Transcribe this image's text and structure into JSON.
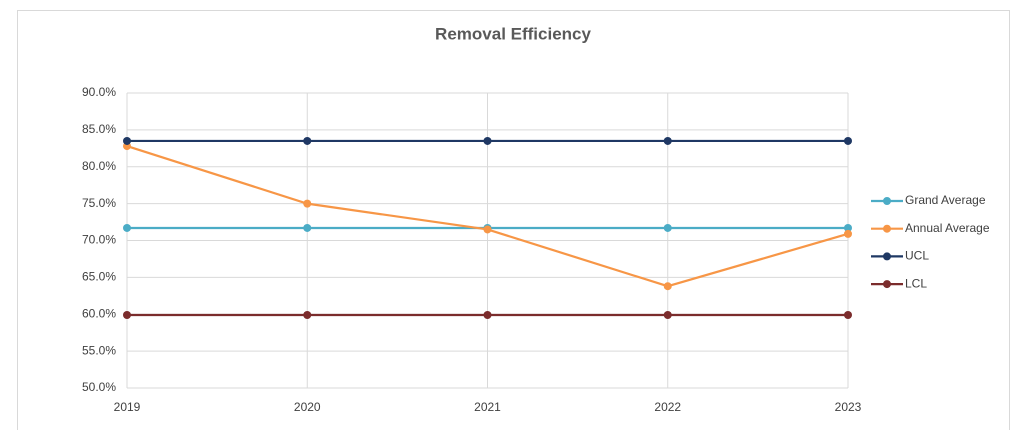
{
  "chart_data": {
    "type": "line",
    "title": "Removal Efficiency",
    "categories": [
      "2019",
      "2020",
      "2021",
      "2022",
      "2023"
    ],
    "series": [
      {
        "name": "Grand Average",
        "color": "#4bacc6",
        "values": [
          71.7,
          71.7,
          71.7,
          71.7,
          71.7
        ]
      },
      {
        "name": "Annual Average",
        "color": "#f79646",
        "values": [
          82.8,
          75.0,
          71.5,
          63.8,
          70.9
        ]
      },
      {
        "name": "UCL",
        "color": "#1f3864",
        "values": [
          83.5,
          83.5,
          83.5,
          83.5,
          83.5
        ]
      },
      {
        "name": "LCL",
        "color": "#7b2c2c",
        "values": [
          59.9,
          59.9,
          59.9,
          59.9,
          59.9
        ]
      }
    ],
    "ylim": [
      50,
      90
    ],
    "yticks": [
      {
        "value": 50,
        "label": "50.0%"
      },
      {
        "value": 55,
        "label": "55.0%"
      },
      {
        "value": 60,
        "label": "60.0%"
      },
      {
        "value": 65,
        "label": "65.0%"
      },
      {
        "value": 70,
        "label": "70.0%"
      },
      {
        "value": 75,
        "label": "75.0%"
      },
      {
        "value": 80,
        "label": "80.0%"
      },
      {
        "value": 85,
        "label": "85.0%"
      },
      {
        "value": 90,
        "label": "90.0%"
      }
    ],
    "grid": true,
    "legend": "right"
  }
}
